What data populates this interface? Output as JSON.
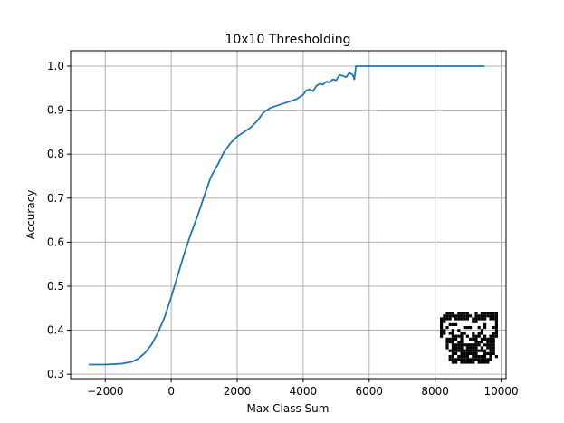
{
  "chart_data": {
    "type": "line",
    "title": "10x10 Thresholding",
    "xlabel": "Max Class Sum",
    "ylabel": "Accuracy",
    "xlim": [
      -3050,
      10150
    ],
    "ylim": [
      0.29,
      1.035
    ],
    "grid": true,
    "line_color": "#1f77b4",
    "xticks": [
      -2000,
      0,
      2000,
      4000,
      6000,
      8000,
      10000
    ],
    "xtick_labels": [
      "−2000",
      "0",
      "2000",
      "4000",
      "6000",
      "8000",
      "10000"
    ],
    "yticks": [
      0.3,
      0.4,
      0.5,
      0.6,
      0.7,
      0.8,
      0.9,
      1.0
    ],
    "ytick_labels": [
      "0.3",
      "0.4",
      "0.5",
      "0.6",
      "0.7",
      "0.8",
      "0.9",
      "1.0"
    ],
    "series": [
      {
        "x": [
          -2500,
          -2000,
          -1500,
          -1200,
          -1000,
          -800,
          -600,
          -400,
          -200,
          0,
          200,
          400,
          600,
          800,
          1000,
          1200,
          1400,
          1600,
          1800,
          2000,
          2200,
          2400,
          2600,
          2700,
          2800,
          3000,
          3200,
          3400,
          3600,
          3800,
          4000,
          4100,
          4200,
          4300,
          4400,
          4500,
          4600,
          4700,
          4800,
          4900,
          5000,
          5100,
          5200,
          5300,
          5400,
          5500,
          5550,
          5600,
          6000,
          7000,
          8000,
          9000,
          9500
        ],
        "y": [
          0.322,
          0.322,
          0.324,
          0.328,
          0.335,
          0.348,
          0.367,
          0.395,
          0.43,
          0.475,
          0.525,
          0.575,
          0.62,
          0.66,
          0.705,
          0.748,
          0.775,
          0.805,
          0.825,
          0.84,
          0.85,
          0.86,
          0.875,
          0.885,
          0.895,
          0.905,
          0.91,
          0.915,
          0.92,
          0.925,
          0.935,
          0.945,
          0.947,
          0.943,
          0.955,
          0.96,
          0.958,
          0.965,
          0.963,
          0.97,
          0.968,
          0.98,
          0.978,
          0.975,
          0.985,
          0.98,
          0.97,
          1.0,
          1.0,
          1.0,
          1.0,
          1.0,
          1.0
        ]
      }
    ]
  }
}
